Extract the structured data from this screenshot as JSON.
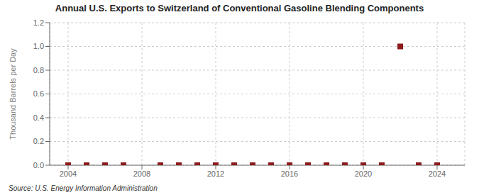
{
  "chart_data": {
    "type": "scatter",
    "title": "Annual U.S. Exports to Switzerland of Conventional Gasoline Blending Components",
    "ylabel": "Thousand Barrels per Day",
    "annotations": [
      "Source: U.S. Energy Information Administration"
    ],
    "x": [
      2004,
      2005,
      2006,
      2007,
      2009,
      2010,
      2011,
      2012,
      2013,
      2014,
      2015,
      2016,
      2017,
      2018,
      2019,
      2020,
      2021,
      2022,
      2023,
      2024
    ],
    "values": [
      0.0,
      0.0,
      0.0,
      0.0,
      0.0,
      0.0,
      0.0,
      0.0,
      0.0,
      0.0,
      0.0,
      0.0,
      0.0,
      0.0,
      0.0,
      0.0,
      0.0,
      1.0,
      0.0,
      0.0
    ],
    "color": "#8b1a1a",
    "marker": "square",
    "xlim": [
      2003.0,
      2025.5
    ],
    "xticks": [
      2004,
      2008,
      2012,
      2016,
      2020,
      2024
    ],
    "ylim": [
      0.0,
      1.2
    ],
    "yticks": [
      {
        "value": 0.0,
        "label": "0.0"
      },
      0.2,
      0.4,
      0.6,
      0.8,
      {
        "value": 1.0,
        "label": "1.0"
      },
      1.2
    ],
    "grid": true
  }
}
